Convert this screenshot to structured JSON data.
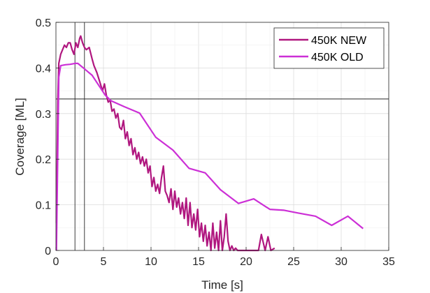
{
  "chart_data": {
    "type": "line",
    "xlabel": "Time [s]",
    "ylabel": "Coverage [ML]",
    "xlim": [
      0,
      35
    ],
    "ylim": [
      0,
      0.5
    ],
    "x_ticks": [
      0,
      5,
      10,
      15,
      20,
      25,
      30,
      35
    ],
    "y_ticks": [
      0,
      0.1,
      0.2,
      0.3,
      0.4,
      0.5
    ],
    "x_tick_labels": [
      "0",
      "5",
      "10",
      "15",
      "20",
      "25",
      "30",
      "35"
    ],
    "y_tick_labels": [
      "0",
      "0.1",
      "0.2",
      "0.3",
      "0.4",
      "0.5"
    ],
    "grid": true,
    "legend_position": "top-right",
    "reference_lines": {
      "vertical_x": [
        2.0,
        3.0
      ],
      "horizontal_y": [
        0.332
      ]
    },
    "series": [
      {
        "name": "450K NEW",
        "color": "#b0177f",
        "x": [
          0.05,
          0.2,
          0.3,
          0.5,
          0.7,
          0.9,
          1.1,
          1.3,
          1.5,
          1.7,
          1.9,
          2.1,
          2.3,
          2.5,
          2.6,
          2.8,
          3.0,
          3.2,
          3.5,
          3.8,
          4.0,
          4.3,
          4.6,
          4.9,
          5.1,
          5.3,
          5.5,
          5.7,
          5.9,
          6.1,
          6.3,
          6.5,
          6.7,
          6.9,
          7.1,
          7.3,
          7.5,
          7.7,
          7.9,
          8.1,
          8.3,
          8.5,
          8.7,
          8.9,
          9.1,
          9.3,
          9.5,
          9.7,
          9.9,
          10.1,
          10.3,
          10.5,
          10.7,
          10.9,
          11.1,
          11.3,
          11.5,
          11.7,
          11.9,
          12.1,
          12.3,
          12.5,
          12.7,
          12.9,
          13.1,
          13.3,
          13.5,
          13.7,
          13.9,
          14.1,
          14.3,
          14.5,
          14.7,
          14.9,
          15.1,
          15.3,
          15.5,
          15.7,
          15.9,
          16.1,
          16.3,
          16.5,
          16.7,
          16.9,
          17.1,
          17.3,
          17.5,
          17.7,
          17.9,
          18.1,
          18.3,
          18.5,
          18.7,
          18.9,
          19.1,
          19.5,
          20.0,
          20.5,
          21.0,
          21.3,
          21.6,
          22.0,
          22.3,
          22.6,
          23.0
        ],
        "values": [
          0.06,
          0.33,
          0.41,
          0.43,
          0.44,
          0.45,
          0.445,
          0.455,
          0.455,
          0.44,
          0.43,
          0.455,
          0.445,
          0.465,
          0.47,
          0.455,
          0.445,
          0.44,
          0.445,
          0.42,
          0.405,
          0.39,
          0.37,
          0.35,
          0.365,
          0.34,
          0.325,
          0.33,
          0.305,
          0.31,
          0.29,
          0.3,
          0.27,
          0.265,
          0.285,
          0.245,
          0.26,
          0.23,
          0.245,
          0.21,
          0.225,
          0.2,
          0.215,
          0.19,
          0.205,
          0.185,
          0.2,
          0.17,
          0.185,
          0.14,
          0.16,
          0.13,
          0.145,
          0.125,
          0.16,
          0.185,
          0.13,
          0.12,
          0.105,
          0.135,
          0.09,
          0.13,
          0.095,
          0.115,
          0.08,
          0.105,
          0.07,
          0.115,
          0.055,
          0.105,
          0.05,
          0.08,
          0.045,
          0.09,
          0.03,
          0.06,
          0.02,
          0.055,
          0.01,
          0.04,
          0.0,
          0.06,
          0.005,
          0.04,
          0.0,
          0.065,
          0.0,
          0.03,
          0.08,
          0.02,
          0.0,
          0.01,
          0.0,
          0.005,
          0.0,
          0.0,
          0.0,
          0.0,
          0.0,
          0.0,
          0.035,
          0.0,
          0.03,
          0.0,
          0.005
        ]
      },
      {
        "name": "450K OLD",
        "color": "#cc2fd6",
        "x": [
          0.05,
          0.3,
          0.5,
          1.0,
          1.5,
          2.0,
          2.3,
          3.0,
          3.8,
          4.5,
          5.2,
          5.8,
          7.2,
          8.8,
          10.5,
          12.3,
          14.0,
          15.7,
          17.3,
          19.2,
          20.8,
          22.5,
          24.0,
          25.5,
          27.3,
          29.0,
          30.7,
          32.3
        ],
        "values": [
          0.0,
          0.38,
          0.405,
          0.407,
          0.408,
          0.41,
          0.41,
          0.398,
          0.384,
          0.362,
          0.34,
          0.328,
          0.315,
          0.301,
          0.248,
          0.22,
          0.18,
          0.17,
          0.133,
          0.103,
          0.113,
          0.09,
          0.088,
          0.082,
          0.075,
          0.055,
          0.075,
          0.048
        ]
      }
    ]
  }
}
